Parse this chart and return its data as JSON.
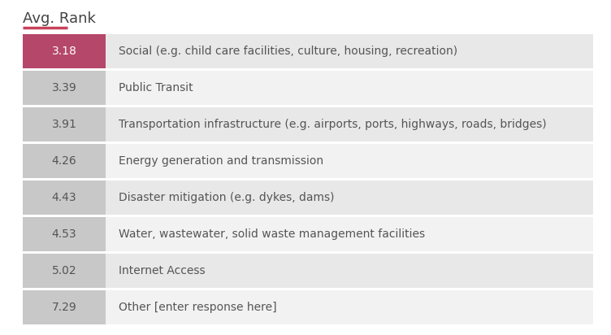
{
  "title": "Avg. Rank",
  "rows": [
    {
      "rank": "3.18",
      "label": "Social (e.g. child care facilities, culture, housing, recreation)",
      "first": true
    },
    {
      "rank": "3.39",
      "label": "Public Transit",
      "first": false
    },
    {
      "rank": "3.91",
      "label": "Transportation infrastructure (e.g. airports, ports, highways, roads, bridges)",
      "first": false
    },
    {
      "rank": "4.26",
      "label": "Energy generation and transmission",
      "first": false
    },
    {
      "rank": "4.43",
      "label": "Disaster mitigation (e.g. dykes, dams)",
      "first": false
    },
    {
      "rank": "4.53",
      "label": "Water, wastewater, solid waste management facilities",
      "first": false
    },
    {
      "rank": "5.02",
      "label": "Internet Access",
      "first": false
    },
    {
      "rank": "7.29",
      "label": "Other [enter response here]",
      "first": false
    }
  ],
  "rank_cell_pink": "#b5476a",
  "rank_cell_grey": "#c8c8c8",
  "row_bg_dark": "#e8e8e8",
  "row_bg_light": "#f2f2f2",
  "text_white": "#ffffff",
  "text_dark": "#555555",
  "label_color": "#555555",
  "title_color": "#444444",
  "background_color": "#ffffff",
  "title_fontsize": 13,
  "rank_fontsize": 10,
  "label_fontsize": 10,
  "title_underline_color": "#c8415a",
  "gap_color": "#ffffff"
}
